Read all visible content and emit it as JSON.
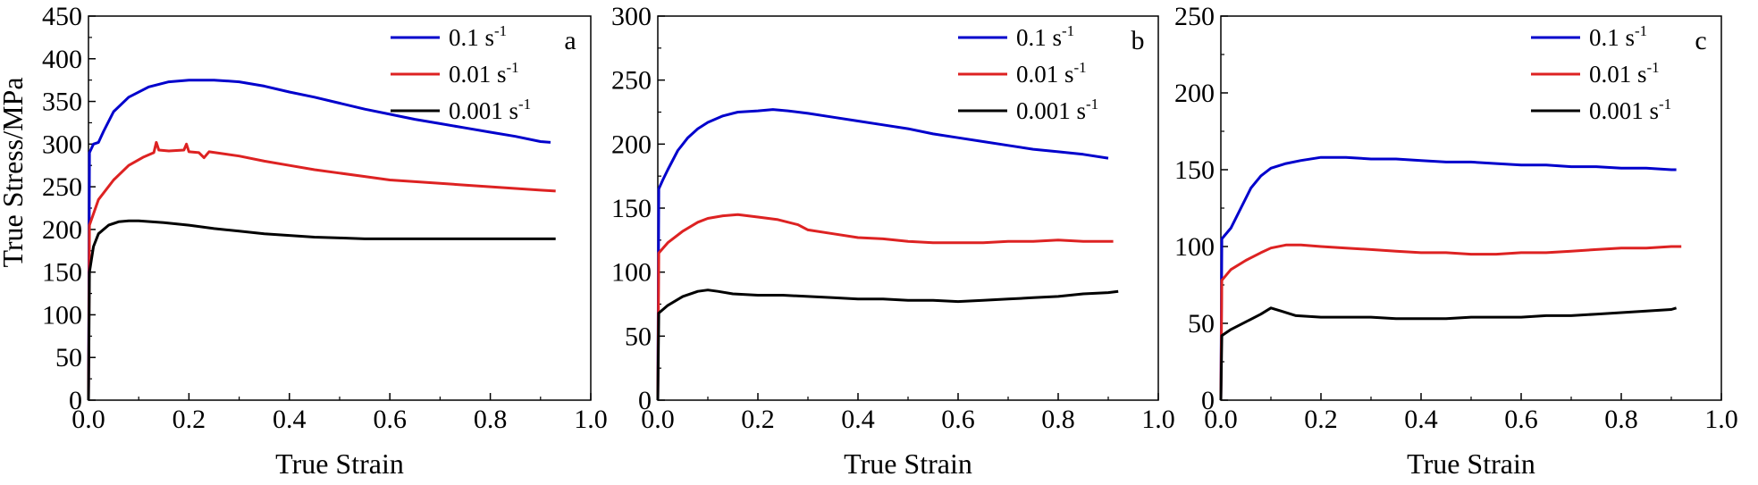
{
  "figure": {
    "shared_ylabel": "True Stress/MPa"
  },
  "chart_data": [
    {
      "type": "line",
      "panel_label": "a",
      "xlabel": "True Strain",
      "ylabel": "True Stress/MPa",
      "xlim": [
        0,
        1.0
      ],
      "ylim": [
        0,
        450
      ],
      "xticks": [
        "0.0",
        "0.2",
        "0.4",
        "0.6",
        "0.8",
        "1.0"
      ],
      "yticks": [
        "0",
        "50",
        "100",
        "150",
        "200",
        "250",
        "300",
        "350",
        "400",
        "450"
      ],
      "legend_position": "top-right",
      "series": [
        {
          "name": "0.1 s",
          "name_sup": "-1",
          "color": "#0000cc",
          "points": [
            [
              0,
              0
            ],
            [
              0.002,
              290
            ],
            [
              0.01,
              300
            ],
            [
              0.02,
              302
            ],
            [
              0.03,
              315
            ],
            [
              0.05,
              338
            ],
            [
              0.08,
              355
            ],
            [
              0.12,
              367
            ],
            [
              0.16,
              373
            ],
            [
              0.2,
              375
            ],
            [
              0.25,
              375
            ],
            [
              0.3,
              373
            ],
            [
              0.35,
              368
            ],
            [
              0.4,
              361
            ],
            [
              0.45,
              355
            ],
            [
              0.5,
              348
            ],
            [
              0.55,
              341
            ],
            [
              0.6,
              335
            ],
            [
              0.65,
              329
            ],
            [
              0.7,
              324
            ],
            [
              0.75,
              319
            ],
            [
              0.8,
              314
            ],
            [
              0.85,
              309
            ],
            [
              0.9,
              303
            ],
            [
              0.92,
              302
            ]
          ]
        },
        {
          "name": "0.01 s",
          "name_sup": "-1",
          "color": "#dd2222",
          "points": [
            [
              0,
              0
            ],
            [
              0.002,
              205
            ],
            [
              0.02,
              235
            ],
            [
              0.05,
              258
            ],
            [
              0.08,
              275
            ],
            [
              0.11,
              285
            ],
            [
              0.13,
              290
            ],
            [
              0.135,
              302
            ],
            [
              0.14,
              293
            ],
            [
              0.16,
              292
            ],
            [
              0.19,
              293
            ],
            [
              0.195,
              300
            ],
            [
              0.2,
              291
            ],
            [
              0.22,
              290
            ],
            [
              0.23,
              284
            ],
            [
              0.24,
              291
            ],
            [
              0.3,
              286
            ],
            [
              0.35,
              280
            ],
            [
              0.4,
              275
            ],
            [
              0.45,
              270
            ],
            [
              0.5,
              266
            ],
            [
              0.55,
              262
            ],
            [
              0.6,
              258
            ],
            [
              0.65,
              256
            ],
            [
              0.7,
              254
            ],
            [
              0.75,
              252
            ],
            [
              0.8,
              250
            ],
            [
              0.85,
              248
            ],
            [
              0.9,
              246
            ],
            [
              0.93,
              245
            ]
          ]
        },
        {
          "name": "0.001 s",
          "name_sup": "-1",
          "color": "#000000",
          "points": [
            [
              0,
              0
            ],
            [
              0.002,
              150
            ],
            [
              0.01,
              180
            ],
            [
              0.02,
              195
            ],
            [
              0.04,
              205
            ],
            [
              0.06,
              209
            ],
            [
              0.08,
              210
            ],
            [
              0.1,
              210
            ],
            [
              0.15,
              208
            ],
            [
              0.2,
              205
            ],
            [
              0.25,
              201
            ],
            [
              0.3,
              198
            ],
            [
              0.35,
              195
            ],
            [
              0.4,
              193
            ],
            [
              0.45,
              191
            ],
            [
              0.5,
              190
            ],
            [
              0.55,
              189
            ],
            [
              0.6,
              189
            ],
            [
              0.65,
              189
            ],
            [
              0.7,
              189
            ],
            [
              0.75,
              189
            ],
            [
              0.8,
              189
            ],
            [
              0.85,
              189
            ],
            [
              0.9,
              189
            ],
            [
              0.93,
              189
            ]
          ]
        }
      ]
    },
    {
      "type": "line",
      "panel_label": "b",
      "xlabel": "True Strain",
      "ylabel": "",
      "xlim": [
        0,
        1.0
      ],
      "ylim": [
        0,
        300
      ],
      "xticks": [
        "0.0",
        "0.2",
        "0.4",
        "0.6",
        "0.8",
        "1.0"
      ],
      "yticks": [
        "0",
        "50",
        "100",
        "150",
        "200",
        "250",
        "300"
      ],
      "legend_position": "top-right",
      "series": [
        {
          "name": "0.1 s",
          "name_sup": "-1",
          "color": "#0000cc",
          "points": [
            [
              0,
              0
            ],
            [
              0.002,
              165
            ],
            [
              0.01,
              172
            ],
            [
              0.02,
              180
            ],
            [
              0.04,
              195
            ],
            [
              0.06,
              205
            ],
            [
              0.08,
              212
            ],
            [
              0.1,
              217
            ],
            [
              0.13,
              222
            ],
            [
              0.16,
              225
            ],
            [
              0.2,
              226
            ],
            [
              0.23,
              227
            ],
            [
              0.26,
              226
            ],
            [
              0.3,
              224
            ],
            [
              0.35,
              221
            ],
            [
              0.4,
              218
            ],
            [
              0.45,
              215
            ],
            [
              0.5,
              212
            ],
            [
              0.55,
              208
            ],
            [
              0.6,
              205
            ],
            [
              0.65,
              202
            ],
            [
              0.7,
              199
            ],
            [
              0.75,
              196
            ],
            [
              0.8,
              194
            ],
            [
              0.85,
              192
            ],
            [
              0.9,
              189
            ]
          ]
        },
        {
          "name": "0.01 s",
          "name_sup": "-1",
          "color": "#dd2222",
          "points": [
            [
              0,
              0
            ],
            [
              0.002,
              115
            ],
            [
              0.02,
              123
            ],
            [
              0.05,
              132
            ],
            [
              0.08,
              139
            ],
            [
              0.1,
              142
            ],
            [
              0.13,
              144
            ],
            [
              0.16,
              145
            ],
            [
              0.2,
              143
            ],
            [
              0.24,
              141
            ],
            [
              0.28,
              137
            ],
            [
              0.3,
              133
            ],
            [
              0.35,
              130
            ],
            [
              0.4,
              127
            ],
            [
              0.45,
              126
            ],
            [
              0.5,
              124
            ],
            [
              0.55,
              123
            ],
            [
              0.6,
              123
            ],
            [
              0.65,
              123
            ],
            [
              0.7,
              124
            ],
            [
              0.75,
              124
            ],
            [
              0.8,
              125
            ],
            [
              0.85,
              124
            ],
            [
              0.9,
              124
            ],
            [
              0.91,
              124
            ]
          ]
        },
        {
          "name": "0.001 s",
          "name_sup": "-1",
          "color": "#000000",
          "points": [
            [
              0,
              0
            ],
            [
              0.002,
              68
            ],
            [
              0.02,
              74
            ],
            [
              0.05,
              81
            ],
            [
              0.08,
              85
            ],
            [
              0.1,
              86
            ],
            [
              0.12,
              85
            ],
            [
              0.15,
              83
            ],
            [
              0.2,
              82
            ],
            [
              0.25,
              82
            ],
            [
              0.3,
              81
            ],
            [
              0.35,
              80
            ],
            [
              0.4,
              79
            ],
            [
              0.45,
              79
            ],
            [
              0.5,
              78
            ],
            [
              0.55,
              78
            ],
            [
              0.6,
              77
            ],
            [
              0.65,
              78
            ],
            [
              0.7,
              79
            ],
            [
              0.75,
              80
            ],
            [
              0.8,
              81
            ],
            [
              0.85,
              83
            ],
            [
              0.9,
              84
            ],
            [
              0.92,
              85
            ]
          ]
        }
      ]
    },
    {
      "type": "line",
      "panel_label": "c",
      "xlabel": "True Strain",
      "ylabel": "",
      "xlim": [
        0,
        1.0
      ],
      "ylim": [
        0,
        250
      ],
      "xticks": [
        "0.0",
        "0.2",
        "0.4",
        "0.6",
        "0.8",
        "1.0"
      ],
      "yticks": [
        "0",
        "50",
        "100",
        "150",
        "200",
        "250"
      ],
      "legend_position": "top-right",
      "series": [
        {
          "name": "0.1 s",
          "name_sup": "-1",
          "color": "#0000cc",
          "points": [
            [
              0,
              0
            ],
            [
              0.002,
              105
            ],
            [
              0.02,
              112
            ],
            [
              0.04,
              125
            ],
            [
              0.06,
              138
            ],
            [
              0.08,
              146
            ],
            [
              0.1,
              151
            ],
            [
              0.13,
              154
            ],
            [
              0.16,
              156
            ],
            [
              0.2,
              158
            ],
            [
              0.25,
              158
            ],
            [
              0.3,
              157
            ],
            [
              0.35,
              157
            ],
            [
              0.4,
              156
            ],
            [
              0.45,
              155
            ],
            [
              0.5,
              155
            ],
            [
              0.55,
              154
            ],
            [
              0.6,
              153
            ],
            [
              0.65,
              153
            ],
            [
              0.7,
              152
            ],
            [
              0.75,
              152
            ],
            [
              0.8,
              151
            ],
            [
              0.85,
              151
            ],
            [
              0.9,
              150
            ],
            [
              0.91,
              150
            ]
          ]
        },
        {
          "name": "0.01 s",
          "name_sup": "-1",
          "color": "#dd2222",
          "points": [
            [
              0,
              0
            ],
            [
              0.002,
              78
            ],
            [
              0.02,
              85
            ],
            [
              0.05,
              91
            ],
            [
              0.08,
              96
            ],
            [
              0.1,
              99
            ],
            [
              0.13,
              101
            ],
            [
              0.16,
              101
            ],
            [
              0.2,
              100
            ],
            [
              0.25,
              99
            ],
            [
              0.3,
              98
            ],
            [
              0.35,
              97
            ],
            [
              0.4,
              96
            ],
            [
              0.45,
              96
            ],
            [
              0.5,
              95
            ],
            [
              0.55,
              95
            ],
            [
              0.6,
              96
            ],
            [
              0.65,
              96
            ],
            [
              0.7,
              97
            ],
            [
              0.75,
              98
            ],
            [
              0.8,
              99
            ],
            [
              0.85,
              99
            ],
            [
              0.9,
              100
            ],
            [
              0.92,
              100
            ]
          ]
        },
        {
          "name": "0.001 s",
          "name_sup": "-1",
          "color": "#000000",
          "points": [
            [
              0,
              0
            ],
            [
              0.002,
              42
            ],
            [
              0.02,
              46
            ],
            [
              0.05,
              51
            ],
            [
              0.08,
              56
            ],
            [
              0.1,
              60
            ],
            [
              0.12,
              58
            ],
            [
              0.15,
              55
            ],
            [
              0.2,
              54
            ],
            [
              0.25,
              54
            ],
            [
              0.3,
              54
            ],
            [
              0.35,
              53
            ],
            [
              0.4,
              53
            ],
            [
              0.45,
              53
            ],
            [
              0.5,
              54
            ],
            [
              0.55,
              54
            ],
            [
              0.6,
              54
            ],
            [
              0.65,
              55
            ],
            [
              0.7,
              55
            ],
            [
              0.75,
              56
            ],
            [
              0.8,
              57
            ],
            [
              0.85,
              58
            ],
            [
              0.9,
              59
            ],
            [
              0.91,
              60
            ]
          ]
        }
      ]
    }
  ]
}
